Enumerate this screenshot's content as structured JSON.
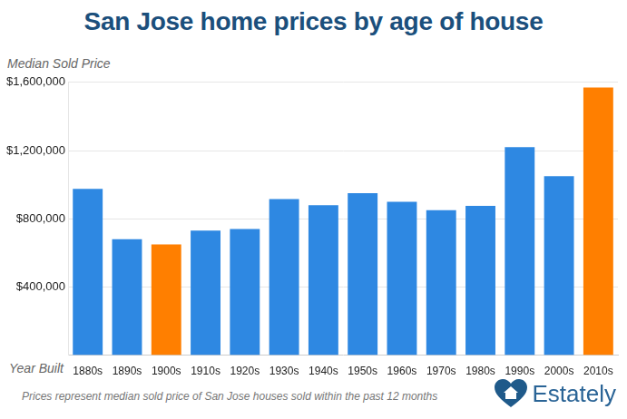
{
  "chart_data": {
    "type": "bar",
    "title": "San Jose home prices by age of house",
    "y_label": "Median Sold Price",
    "x_label": "Year Built",
    "note": "Prices represent median sold price of San Jose houses sold within the past 12 months",
    "source": "Estately",
    "categories": [
      "1880s",
      "1890s",
      "1900s",
      "1910s",
      "1920s",
      "1930s",
      "1940s",
      "1950s",
      "1960s",
      "1970s",
      "1980s",
      "1990s",
      "2000s",
      "2010s"
    ],
    "values": [
      975000,
      680000,
      650000,
      730000,
      740000,
      915000,
      880000,
      950000,
      900000,
      850000,
      875000,
      1220000,
      1050000,
      1570000
    ],
    "colors": [
      "#2e88e2",
      "#2e88e2",
      "#ff7f00",
      "#2e88e2",
      "#2e88e2",
      "#2e88e2",
      "#2e88e2",
      "#2e88e2",
      "#2e88e2",
      "#2e88e2",
      "#2e88e2",
      "#2e88e2",
      "#2e88e2",
      "#ff7f00"
    ],
    "ylim": [
      0,
      1600000
    ],
    "yticks": [
      {
        "value": 400000,
        "label": "$400,000"
      },
      {
        "value": 800000,
        "label": "$800,000"
      },
      {
        "value": 1200000,
        "label": "$1,200,000"
      },
      {
        "value": 1600000,
        "label": "$1,600,000"
      }
    ],
    "grid": true
  }
}
